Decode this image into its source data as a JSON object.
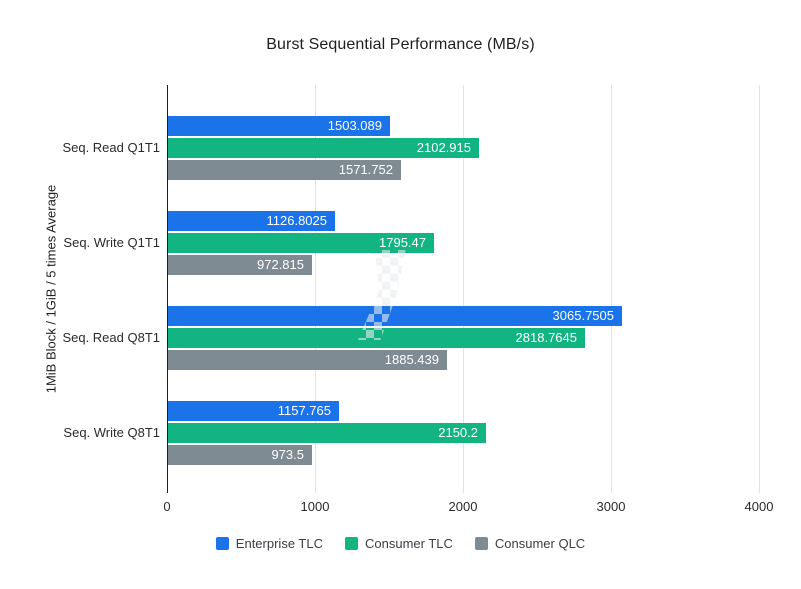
{
  "chart_data": {
    "type": "bar",
    "orientation": "horizontal",
    "title": "Burst Sequential Performance (MB/s)",
    "ylabel": "1MiB Block / 1GiB / 5 times Average",
    "xlabel": "",
    "xlim": [
      0,
      4000
    ],
    "x_ticks": [
      "0",
      "1000",
      "2000",
      "3000",
      "4000"
    ],
    "grid": true,
    "legend_position": "bottom",
    "categories": [
      "Seq. Read Q1T1",
      "Seq. Write Q1T1",
      "Seq. Read Q8T1",
      "Seq. Write Q8T1"
    ],
    "series": [
      {
        "name": "Enterprise TLC",
        "color": "#1a73e8",
        "values": [
          1503.089,
          1126.8025,
          3065.7505,
          1157.765
        ],
        "labels": [
          "1503.089",
          "1126.8025",
          "3065.7505",
          "1157.765"
        ]
      },
      {
        "name": "Consumer TLC",
        "color": "#12b581",
        "values": [
          2102.915,
          1795.47,
          2818.7645,
          2150.2
        ],
        "labels": [
          "2102.915",
          "1795.47",
          "2818.7645",
          "2150.2"
        ]
      },
      {
        "name": "Consumer QLC",
        "color": "#7f8b93",
        "values": [
          1571.752,
          972.815,
          1885.439,
          973.5
        ],
        "labels": [
          "1571.752",
          "972.815",
          "1885.439",
          "973.5"
        ]
      }
    ],
    "value_label_color": "#ffffff",
    "gridline_color": "#e3e3e3",
    "baseline_color": "#1e1e1e"
  }
}
